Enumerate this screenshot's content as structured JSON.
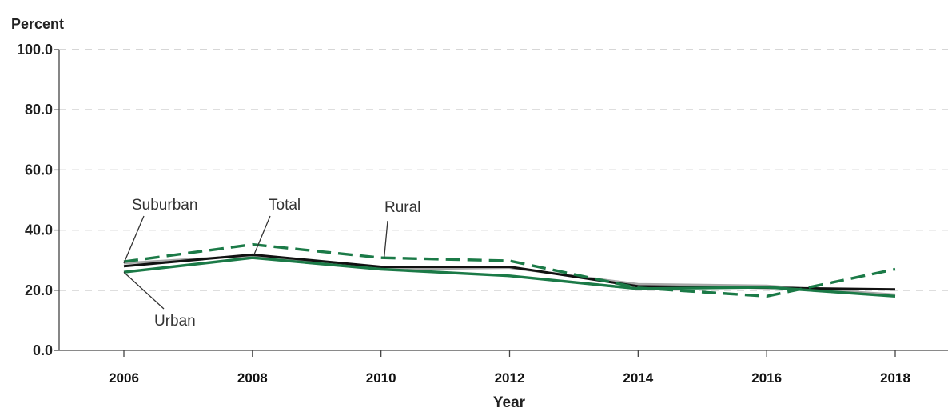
{
  "chart_data": {
    "type": "line",
    "ylabel": "Percent",
    "xlabel": "Year",
    "x": [
      2006,
      2008,
      2010,
      2012,
      2014,
      2016,
      2018
    ],
    "xlim": [
      2006,
      2018
    ],
    "ylim": [
      0,
      100
    ],
    "yticks": [
      "0.0",
      "20.0",
      "40.0",
      "60.0",
      "80.0",
      "100.0"
    ],
    "xticks": [
      "2006",
      "2008",
      "2010",
      "2012",
      "2014",
      "2016",
      "2018"
    ],
    "grid": "horizontal dashed",
    "series": [
      {
        "name": "Suburban",
        "values": [
          29.0,
          31.5,
          27.0,
          27.5,
          22.0,
          21.5,
          18.5
        ],
        "color": "#a8a8a8",
        "dash": "solid"
      },
      {
        "name": "Total",
        "values": [
          28.0,
          31.8,
          27.8,
          27.8,
          21.3,
          20.8,
          20.3
        ],
        "color": "#111111",
        "dash": "solid"
      },
      {
        "name": "Rural",
        "values": [
          29.5,
          35.2,
          30.8,
          29.8,
          20.8,
          18.0,
          27.0
        ],
        "color": "#1b7a47",
        "dash": "dashed"
      },
      {
        "name": "Urban",
        "values": [
          26.0,
          30.8,
          27.0,
          24.8,
          20.5,
          21.0,
          18.0
        ],
        "color": "#1b7a47",
        "dash": "solid"
      }
    ],
    "annotations": [
      {
        "text": "Suburban",
        "series": "Suburban",
        "point": 0
      },
      {
        "text": "Total",
        "series": "Total",
        "point": 1
      },
      {
        "text": "Rural",
        "series": "Rural",
        "point": 2
      },
      {
        "text": "Urban",
        "series": "Urban",
        "point": 0
      }
    ]
  }
}
